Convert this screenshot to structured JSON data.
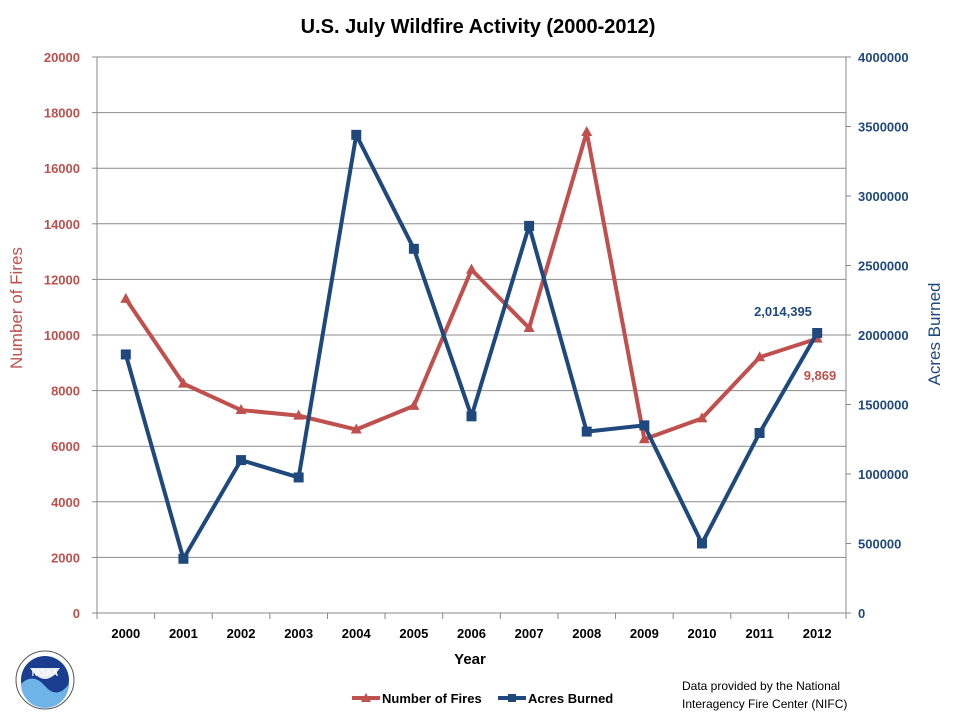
{
  "chart_data": {
    "type": "line",
    "title": "U.S. July Wildfire Activity (2000-2012)",
    "xlabel": "Year",
    "ylabel_left": "Number of Fires",
    "ylabel_right": "Acres Burned",
    "categories": [
      "2000",
      "2001",
      "2002",
      "2003",
      "2004",
      "2005",
      "2006",
      "2007",
      "2008",
      "2009",
      "2010",
      "2011",
      "2012"
    ],
    "ylim_left": [
      0,
      20000
    ],
    "ylim_right": [
      0,
      4000000
    ],
    "yticks_left": [
      "0",
      "2000",
      "4000",
      "6000",
      "8000",
      "10000",
      "12000",
      "14000",
      "16000",
      "18000",
      "20000"
    ],
    "yticks_right": [
      "0",
      "500000",
      "1000000",
      "1500000",
      "2000000",
      "2500000",
      "3000000",
      "3500000",
      "4000000"
    ],
    "grid": true,
    "legend_position": "bottom",
    "series": [
      {
        "name": "Number of Fires",
        "axis": "left",
        "marker": "triangle",
        "color": "#c0504d",
        "values": [
          11300,
          8250,
          7300,
          7100,
          6600,
          7450,
          12350,
          10250,
          17300,
          6250,
          7000,
          9200,
          9869
        ]
      },
      {
        "name": "Acres Burned",
        "axis": "right",
        "marker": "square",
        "color": "#1f497d",
        "values": [
          1860000,
          390000,
          1100000,
          975000,
          3440000,
          2620000,
          1415000,
          2785000,
          1305000,
          1350000,
          500000,
          1295000,
          2014395
        ]
      }
    ],
    "annotations": {
      "fires_last": "9,869",
      "acres_last": "2,014,395"
    }
  },
  "footer": {
    "credit_line1": "Data provided by the National",
    "credit_line2": "Interagency Fire Center (NIFC)"
  },
  "logo": {
    "text": "NOAA"
  }
}
